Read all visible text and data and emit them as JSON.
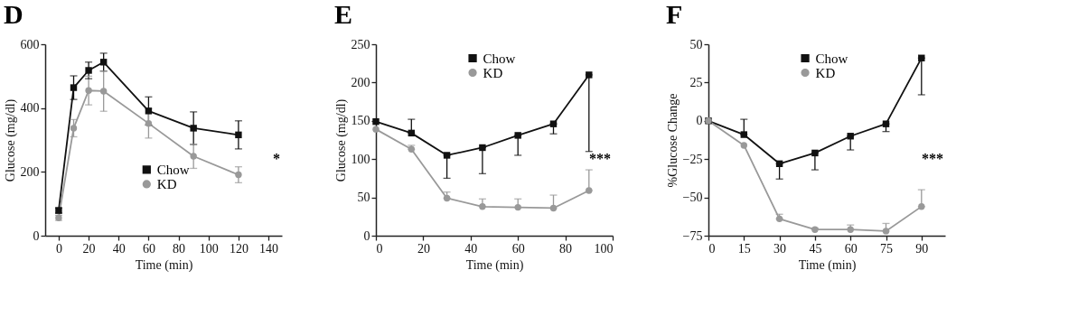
{
  "chart_data": [
    {
      "type": "line",
      "title": "D",
      "xlabel": "Time (min)",
      "ylabel": "Glucose (mg/dl)",
      "x": [
        0,
        10,
        20,
        30,
        60,
        90,
        120
      ],
      "series": [
        {
          "name": "Chow",
          "color": "#111111",
          "marker": "square",
          "values": [
            79,
            464,
            518,
            544,
            391,
            337,
            316
          ],
          "errors": [
            8,
            37,
            26,
            28,
            44,
            51,
            44
          ]
        },
        {
          "name": "KD",
          "color": "#999999",
          "marker": "circle",
          "values": [
            56,
            337,
            455,
            453,
            352,
            249,
            191
          ],
          "errors": [
            8,
            27,
            45,
            63,
            46,
            38,
            25
          ]
        }
      ],
      "xlim": [
        -9,
        149
      ],
      "xticks": [
        0,
        20,
        40,
        60,
        80,
        100,
        120,
        140
      ],
      "ylim": [
        0,
        600
      ],
      "yticks": [
        0,
        200,
        400,
        600
      ],
      "annotations": [
        "*"
      ],
      "legend": "bottom",
      "grid": false,
      "line_style": "solid"
    },
    {
      "type": "line",
      "title": "E",
      "xlabel": "Time (min)",
      "ylabel": "Glucose (mg/dl)",
      "x": [
        0,
        15,
        30,
        45,
        60,
        75,
        90
      ],
      "series": [
        {
          "name": "Chow",
          "color": "#111111",
          "marker": "square",
          "values": [
            149,
            134,
            105,
            115,
            131,
            146,
            210
          ],
          "errors": [
            null,
            [
              134,
              152
            ],
            [
              75,
              105
            ],
            [
              81,
              115
            ],
            [
              105,
              131
            ],
            [
              133,
              146
            ],
            [
              110,
              210
            ]
          ]
        },
        {
          "name": "KD",
          "color": "#999999",
          "marker": "circle",
          "values": [
            139,
            113,
            49,
            38,
            37,
            36,
            59
          ],
          "errors": [
            null,
            [
              113,
              118
            ],
            [
              49,
              57
            ],
            [
              38,
              48
            ],
            [
              37,
              48
            ],
            [
              36,
              53
            ],
            [
              59,
              86
            ]
          ]
        }
      ],
      "xlim": [
        0,
        100
      ],
      "xticks": [
        0,
        20,
        40,
        60,
        80,
        100
      ],
      "ylim": [
        0,
        250
      ],
      "yticks": [
        0,
        50,
        100,
        150,
        200,
        250
      ],
      "annotations": [
        "***"
      ],
      "legend": "top",
      "grid": false,
      "line_style": "solid"
    },
    {
      "type": "line",
      "title": "F",
      "xlabel": "Time (min)",
      "ylabel": "%Glucose Change",
      "x": [
        0,
        15,
        30,
        45,
        60,
        75,
        90
      ],
      "series": [
        {
          "name": "Chow",
          "color": "#111111",
          "marker": "square",
          "values": [
            0,
            -9,
            -28,
            -21,
            -10,
            -2,
            41
          ],
          "errors": [
            null,
            [
              -9,
              1
            ],
            [
              -38,
              -28
            ],
            [
              -32,
              -21
            ],
            [
              -19,
              -10
            ],
            [
              -7,
              -2
            ],
            [
              17,
              41
            ]
          ]
        },
        {
          "name": "KD",
          "color": "#999999",
          "marker": "circle",
          "values": [
            0,
            -16,
            -64,
            -71,
            -71,
            -72,
            -56
          ],
          "errors": [
            null,
            null,
            [
              -64,
              -61
            ],
            [
              -71,
              -70
            ],
            [
              -71,
              -68
            ],
            [
              -72,
              -67
            ],
            [
              -56,
              -45
            ]
          ]
        }
      ],
      "xlim": [
        0,
        100
      ],
      "xticks": [
        0,
        15,
        30,
        45,
        60,
        75,
        90
      ],
      "ylim": [
        -75,
        50
      ],
      "yticks": [
        -75,
        -50,
        -25,
        0,
        25,
        50
      ],
      "annotations": [
        "***"
      ],
      "legend": "top",
      "grid": false,
      "line_style": "solid"
    }
  ]
}
